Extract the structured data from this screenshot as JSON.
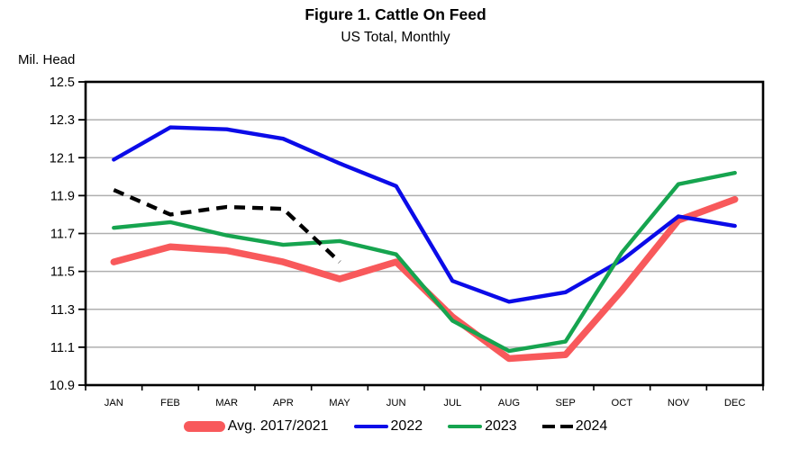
{
  "page": {
    "title": "Figure 1. Cattle On Feed",
    "subtitle": "US Total, Monthly",
    "y_axis_label": "Mil. Head"
  },
  "chart_data": {
    "type": "line",
    "title": "Figure 1. Cattle On Feed",
    "subtitle": "US Total, Monthly",
    "ylabel": "Mil. Head",
    "categories": [
      "JAN",
      "FEB",
      "MAR",
      "APR",
      "MAY",
      "JUN",
      "JUL",
      "AUG",
      "SEP",
      "OCT",
      "NOV",
      "DEC"
    ],
    "ylim": [
      10.9,
      12.5
    ],
    "y_tick_step": 0.2,
    "y_ticks": [
      12.5,
      12.3,
      12.1,
      11.9,
      11.7,
      11.5,
      11.3,
      11.1,
      10.9
    ],
    "grid": "horizontal-only",
    "legend_position": "bottom",
    "colors": {
      "avg_2017_2021": "#F8595B",
      "y2022": "#0B0BE8",
      "y2023": "#16A44F",
      "y2024": "#000000",
      "gridline": "#AFAFAF",
      "axis": "#000000"
    },
    "series": [
      {
        "name": "Avg. 2017/2021",
        "color": "#F8595B",
        "line_style": "solid",
        "line_weight": "thick",
        "values": [
          11.55,
          11.63,
          11.61,
          11.55,
          11.46,
          11.55,
          11.26,
          11.04,
          11.06,
          11.4,
          11.77,
          11.88
        ]
      },
      {
        "name": "2022",
        "color": "#0B0BE8",
        "line_style": "solid",
        "line_weight": "normal",
        "values": [
          12.09,
          12.26,
          12.25,
          12.2,
          12.07,
          11.95,
          11.45,
          11.34,
          11.39,
          11.56,
          11.79,
          11.74
        ]
      },
      {
        "name": "2023",
        "color": "#16A44F",
        "line_style": "solid",
        "line_weight": "normal",
        "values": [
          11.73,
          11.76,
          11.69,
          11.64,
          11.66,
          11.59,
          11.24,
          11.08,
          11.13,
          11.6,
          11.96,
          12.02
        ]
      },
      {
        "name": "2024",
        "color": "#000000",
        "line_style": "dashed",
        "line_weight": "normal",
        "values": [
          11.93,
          11.8,
          11.84,
          11.83,
          11.55,
          null,
          null,
          null,
          null,
          null,
          null,
          null
        ]
      }
    ]
  }
}
